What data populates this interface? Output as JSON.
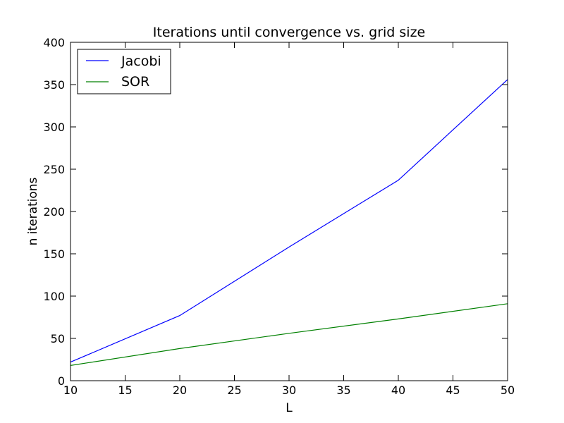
{
  "chart_data": {
    "type": "line",
    "title": "Iterations until convergence vs. grid size",
    "xlabel": "L",
    "ylabel": "n iterations",
    "x": [
      10,
      20,
      30,
      40,
      50
    ],
    "series": [
      {
        "name": "Jacobi",
        "color": "#0000ff",
        "values": [
          22,
          77,
          158,
          237,
          356
        ]
      },
      {
        "name": "SOR",
        "color": "#008000",
        "values": [
          18,
          38,
          56,
          73,
          91
        ]
      }
    ],
    "xlim": [
      10,
      50
    ],
    "ylim": [
      0,
      400
    ],
    "xticks": [
      10,
      15,
      20,
      25,
      30,
      35,
      40,
      45,
      50
    ],
    "yticks": [
      0,
      50,
      100,
      150,
      200,
      250,
      300,
      350,
      400
    ],
    "grid": false,
    "legend_position": "top-left"
  }
}
